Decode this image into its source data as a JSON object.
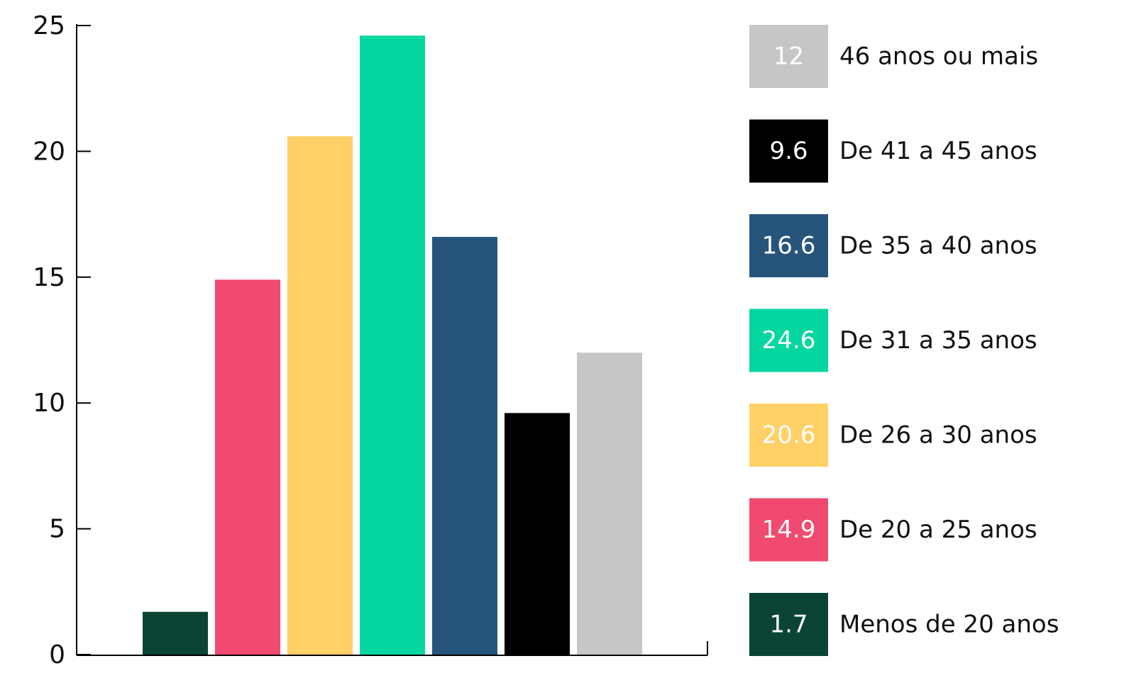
{
  "chart_data": {
    "type": "bar",
    "categories": [
      "Menos de 20 anos",
      "De 20 a 25 anos",
      "De 26 a 30 anos",
      "De 31 a 35 anos",
      "De 35 a 40 anos",
      "De 41 a 45 anos",
      "46 anos ou mais"
    ],
    "values": [
      1.7,
      14.9,
      20.6,
      24.6,
      16.6,
      9.6,
      12
    ],
    "colors": [
      "#0b4434",
      "#f04a70",
      "#fed066",
      "#06d6a0",
      "#27547b",
      "#000000",
      "#c6c6c8"
    ],
    "ylim": [
      0,
      25
    ],
    "yticks": [
      0,
      5,
      10,
      15,
      20,
      25
    ],
    "grid": false,
    "legend": "right"
  }
}
